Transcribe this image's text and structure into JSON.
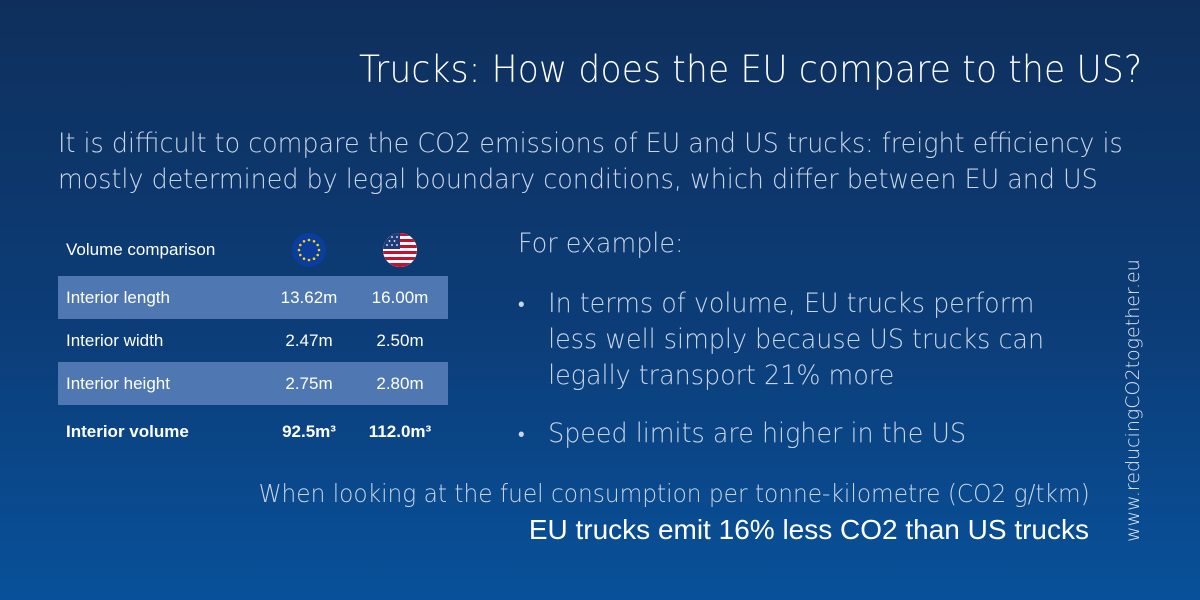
{
  "title": "Trucks: How does the EU compare to the US?",
  "intro": {
    "line1": "It is difficult to compare the CO2 emissions of EU and US trucks: freight efficiency is",
    "line2": "mostly determined by legal boundary conditions, which differ between EU and US"
  },
  "volume_table": {
    "header": "Volume comparison",
    "flags": [
      "eu-flag-icon",
      "us-flag-icon"
    ],
    "rows": [
      {
        "label": "Interior length",
        "eu": "13.62m",
        "us": "16.00m"
      },
      {
        "label": "Interior width",
        "eu": "2.47m",
        "us": "2.50m"
      },
      {
        "label": "Interior height",
        "eu": "2.75m",
        "us": "2.80m"
      }
    ],
    "total": {
      "label": "Interior volume",
      "eu": "92.5m³",
      "us": "112.0m³"
    },
    "colors": {
      "shaded_row": "#4f78b3"
    }
  },
  "examples": {
    "heading": "For example:",
    "bullet1": {
      "line1": "In terms of volume, EU trucks perform",
      "line2": "less well simply because US trucks can",
      "line3": "legally transport 21% more"
    },
    "bullet2": "Speed limits are higher in the US"
  },
  "footer": {
    "line1": "When looking at the fuel consumption per tonne-kilometre (CO2 g/tkm)",
    "line2": "EU trucks emit 16% less CO2 than US trucks"
  },
  "side_url": "www.reducingCO2together.eu"
}
